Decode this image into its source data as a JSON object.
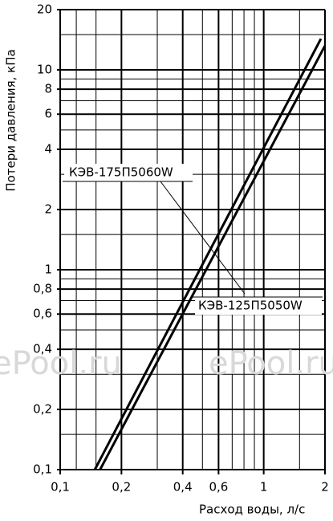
{
  "chart_data": {
    "type": "line",
    "x_label": "Расход воды, л/с",
    "y_label": "Потери давления, кПа",
    "log_x": true,
    "log_y": true,
    "grid": true,
    "xlim": [
      0.1,
      2
    ],
    "ylim": [
      0.1,
      20
    ],
    "xticks": [
      {
        "value": 0.1,
        "label": "0,1"
      },
      {
        "value": 0.2,
        "label": "0,2"
      },
      {
        "value": 0.4,
        "label": "0,4"
      },
      {
        "value": 0.6,
        "label": "0,6"
      },
      1,
      2
    ],
    "yticks": [
      {
        "value": 0.1,
        "label": "0,1"
      },
      {
        "value": 0.2,
        "label": "0,2"
      },
      {
        "value": 0.4,
        "label": "0,4"
      },
      {
        "value": 0.6,
        "label": "0,6"
      },
      {
        "value": 0.8,
        "label": "0,8"
      },
      1,
      2,
      4,
      6,
      8,
      10,
      20
    ],
    "xminor": [
      0.12,
      0.15,
      0.3,
      0.5,
      0.7,
      0.8,
      0.9,
      1.5
    ],
    "yminor": [
      0.15,
      0.3,
      0.5,
      0.7,
      0.9,
      1.5,
      3,
      5,
      7,
      9,
      15
    ],
    "series": [
      {
        "name": "КЭВ-175П5060W",
        "color": "#000000",
        "x": [
          0.148,
          1.91
        ],
        "values": [
          0.1,
          14.3
        ]
      },
      {
        "name": "КЭВ-125П5050W",
        "color": "#000000",
        "x": [
          0.157,
          2
        ],
        "values": [
          0.1,
          13.2
        ]
      }
    ],
    "watermarks": [
      "ePool.ru",
      "ePool.ru"
    ]
  }
}
